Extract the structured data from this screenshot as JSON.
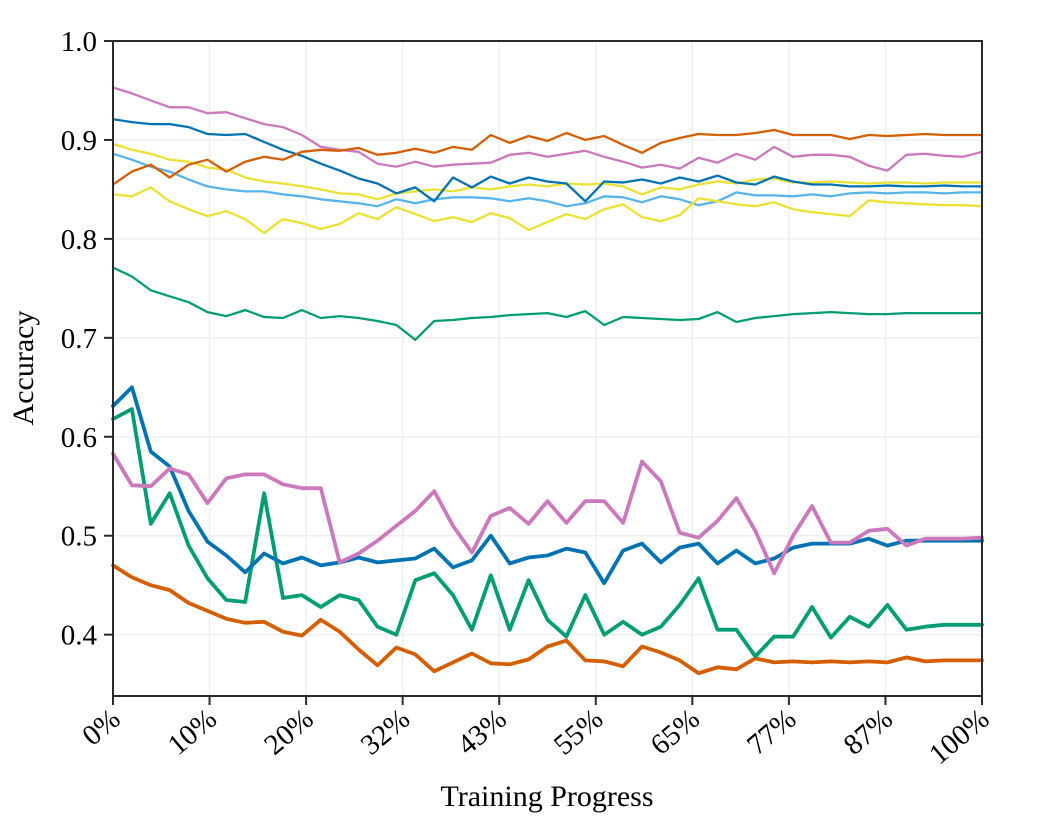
{
  "chart_data": {
    "type": "line",
    "title": "",
    "xlabel": "Training Progress",
    "ylabel": "Accuracy",
    "x_tick_labels": [
      "0%",
      "10%",
      "20%",
      "32%",
      "43%",
      "55%",
      "65%",
      "77%",
      "87%",
      "100%"
    ],
    "y_ticks": [
      0.4,
      0.5,
      0.6,
      0.7,
      0.8,
      0.9,
      1.0
    ],
    "y_tick_labels": [
      "0.4",
      "0.5",
      "0.6",
      "0.7",
      "0.8",
      "0.9",
      "1.0"
    ],
    "ylim": [
      0.338,
      1.0
    ],
    "grid": true,
    "legend": "none",
    "colors": {
      "background": "#ffffff",
      "grid": "#ececec",
      "axis": "#2a2a2a",
      "blue": "#0173b2",
      "sky_blue": "#56b4e9",
      "green": "#029e73",
      "vermillion": "#d55e00",
      "pink": "#cc78bc",
      "yellow": "#ece133"
    },
    "series": [
      {
        "name": "sky-blue-top",
        "color": "#56b4e9",
        "line_width": 2.3,
        "values": [
          0.886,
          0.88,
          0.873,
          0.868,
          0.86,
          0.853,
          0.85,
          0.848,
          0.848,
          0.845,
          0.843,
          0.84,
          0.838,
          0.836,
          0.833,
          0.84,
          0.836,
          0.84,
          0.842,
          0.842,
          0.841,
          0.838,
          0.841,
          0.838,
          0.833,
          0.836,
          0.843,
          0.842,
          0.837,
          0.843,
          0.84,
          0.834,
          0.838,
          0.847,
          0.844,
          0.844,
          0.843,
          0.845,
          0.843,
          0.846,
          0.847,
          0.846,
          0.847,
          0.847,
          0.846,
          0.847,
          0.847
        ]
      },
      {
        "name": "yellow-lower-band",
        "color": "#ece133",
        "line_width": 2.3,
        "values": [
          0.845,
          0.843,
          0.852,
          0.838,
          0.83,
          0.823,
          0.828,
          0.82,
          0.806,
          0.82,
          0.816,
          0.81,
          0.815,
          0.826,
          0.82,
          0.832,
          0.825,
          0.818,
          0.822,
          0.817,
          0.826,
          0.821,
          0.809,
          0.817,
          0.825,
          0.82,
          0.83,
          0.835,
          0.822,
          0.818,
          0.824,
          0.841,
          0.838,
          0.835,
          0.833,
          0.837,
          0.83,
          0.827,
          0.825,
          0.823,
          0.839,
          0.837,
          0.836,
          0.835,
          0.834,
          0.834,
          0.833
        ]
      },
      {
        "name": "yellow-top",
        "color": "#ece133",
        "line_width": 2.3,
        "values": [
          0.896,
          0.89,
          0.886,
          0.88,
          0.878,
          0.872,
          0.87,
          0.862,
          0.858,
          0.856,
          0.853,
          0.85,
          0.846,
          0.845,
          0.84,
          0.846,
          0.848,
          0.85,
          0.848,
          0.852,
          0.85,
          0.853,
          0.855,
          0.853,
          0.856,
          0.855,
          0.856,
          0.853,
          0.845,
          0.852,
          0.85,
          0.855,
          0.858,
          0.856,
          0.86,
          0.861,
          0.857,
          0.857,
          0.858,
          0.857,
          0.856,
          0.857,
          0.857,
          0.856,
          0.857,
          0.857,
          0.857
        ]
      },
      {
        "name": "blue-top",
        "color": "#0173b2",
        "line_width": 2.3,
        "values": [
          0.921,
          0.918,
          0.916,
          0.916,
          0.913,
          0.906,
          0.905,
          0.906,
          0.898,
          0.89,
          0.884,
          0.876,
          0.869,
          0.861,
          0.856,
          0.846,
          0.852,
          0.838,
          0.862,
          0.852,
          0.863,
          0.856,
          0.862,
          0.858,
          0.856,
          0.838,
          0.858,
          0.857,
          0.86,
          0.856,
          0.862,
          0.858,
          0.864,
          0.857,
          0.855,
          0.863,
          0.858,
          0.855,
          0.855,
          0.853,
          0.853,
          0.854,
          0.853,
          0.853,
          0.854,
          0.853,
          0.853
        ]
      },
      {
        "name": "pink-top",
        "color": "#cc78bc",
        "line_width": 2.3,
        "values": [
          0.953,
          0.947,
          0.94,
          0.933,
          0.933,
          0.927,
          0.928,
          0.922,
          0.916,
          0.913,
          0.905,
          0.893,
          0.89,
          0.888,
          0.876,
          0.873,
          0.878,
          0.873,
          0.875,
          0.876,
          0.877,
          0.885,
          0.887,
          0.883,
          0.886,
          0.889,
          0.883,
          0.878,
          0.872,
          0.875,
          0.871,
          0.882,
          0.877,
          0.886,
          0.88,
          0.893,
          0.883,
          0.885,
          0.885,
          0.883,
          0.874,
          0.869,
          0.885,
          0.886,
          0.884,
          0.883,
          0.888
        ]
      },
      {
        "name": "vermillion-top",
        "color": "#d55e00",
        "line_width": 2.3,
        "values": [
          0.855,
          0.868,
          0.875,
          0.862,
          0.875,
          0.88,
          0.868,
          0.878,
          0.883,
          0.88,
          0.888,
          0.89,
          0.889,
          0.892,
          0.885,
          0.887,
          0.891,
          0.887,
          0.893,
          0.89,
          0.905,
          0.897,
          0.904,
          0.899,
          0.907,
          0.9,
          0.904,
          0.895,
          0.887,
          0.897,
          0.902,
          0.906,
          0.905,
          0.905,
          0.907,
          0.91,
          0.905,
          0.905,
          0.905,
          0.901,
          0.905,
          0.904,
          0.905,
          0.906,
          0.905,
          0.905,
          0.905
        ]
      },
      {
        "name": "green-mid",
        "color": "#029e73",
        "line_width": 2.3,
        "values": [
          0.771,
          0.762,
          0.748,
          0.742,
          0.736,
          0.726,
          0.722,
          0.728,
          0.721,
          0.72,
          0.728,
          0.72,
          0.722,
          0.72,
          0.717,
          0.713,
          0.698,
          0.717,
          0.718,
          0.72,
          0.721,
          0.723,
          0.724,
          0.725,
          0.721,
          0.727,
          0.713,
          0.721,
          0.72,
          0.719,
          0.718,
          0.719,
          0.726,
          0.716,
          0.72,
          0.722,
          0.724,
          0.725,
          0.726,
          0.725,
          0.724,
          0.724,
          0.725,
          0.725,
          0.725,
          0.725,
          0.725
        ]
      },
      {
        "name": "vermillion-bottom",
        "color": "#d55e00",
        "line_width": 3.8,
        "values": [
          0.47,
          0.458,
          0.45,
          0.445,
          0.432,
          0.424,
          0.416,
          0.412,
          0.413,
          0.403,
          0.399,
          0.415,
          0.403,
          0.385,
          0.369,
          0.387,
          0.38,
          0.363,
          0.372,
          0.381,
          0.371,
          0.37,
          0.375,
          0.388,
          0.394,
          0.374,
          0.373,
          0.368,
          0.388,
          0.382,
          0.374,
          0.361,
          0.367,
          0.365,
          0.376,
          0.372,
          0.373,
          0.372,
          0.373,
          0.372,
          0.373,
          0.372,
          0.377,
          0.373,
          0.374,
          0.374,
          0.374
        ]
      },
      {
        "name": "green-bottom",
        "color": "#029e73",
        "line_width": 3.8,
        "values": [
          0.618,
          0.628,
          0.512,
          0.543,
          0.49,
          0.457,
          0.435,
          0.433,
          0.543,
          0.437,
          0.44,
          0.428,
          0.44,
          0.435,
          0.408,
          0.4,
          0.455,
          0.462,
          0.44,
          0.405,
          0.46,
          0.405,
          0.455,
          0.415,
          0.398,
          0.44,
          0.4,
          0.413,
          0.4,
          0.408,
          0.43,
          0.457,
          0.405,
          0.405,
          0.378,
          0.398,
          0.398,
          0.428,
          0.397,
          0.418,
          0.408,
          0.43,
          0.405,
          0.408,
          0.41,
          0.41,
          0.41
        ]
      },
      {
        "name": "blue-bottom",
        "color": "#0173b2",
        "line_width": 3.8,
        "values": [
          0.631,
          0.65,
          0.585,
          0.57,
          0.525,
          0.494,
          0.48,
          0.463,
          0.482,
          0.472,
          0.478,
          0.47,
          0.473,
          0.478,
          0.473,
          0.475,
          0.477,
          0.487,
          0.468,
          0.475,
          0.5,
          0.472,
          0.478,
          0.48,
          0.487,
          0.483,
          0.452,
          0.485,
          0.492,
          0.473,
          0.488,
          0.492,
          0.472,
          0.485,
          0.472,
          0.477,
          0.488,
          0.492,
          0.492,
          0.492,
          0.497,
          0.49,
          0.495,
          0.495,
          0.495,
          0.495,
          0.495
        ]
      },
      {
        "name": "pink-bottom",
        "color": "#cc78bc",
        "line_width": 3.8,
        "values": [
          0.583,
          0.551,
          0.55,
          0.568,
          0.562,
          0.533,
          0.558,
          0.562,
          0.562,
          0.552,
          0.548,
          0.548,
          0.473,
          0.482,
          0.495,
          0.51,
          0.525,
          0.545,
          0.51,
          0.483,
          0.52,
          0.528,
          0.512,
          0.535,
          0.513,
          0.535,
          0.535,
          0.513,
          0.575,
          0.555,
          0.503,
          0.498,
          0.515,
          0.538,
          0.505,
          0.462,
          0.5,
          0.53,
          0.493,
          0.493,
          0.505,
          0.507,
          0.49,
          0.497,
          0.497,
          0.497,
          0.498
        ]
      }
    ]
  }
}
